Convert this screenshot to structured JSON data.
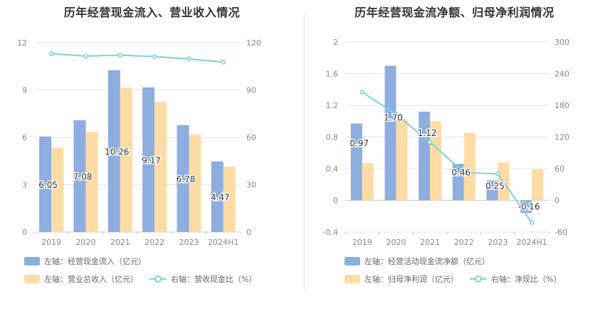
{
  "colors": {
    "bar1": "#8eaee0",
    "bar2": "#ffdca5",
    "line": "#7fd1d8",
    "grid": "#e6e6e6",
    "axis": "#cccccc",
    "tick": "#888888",
    "label": "#333333"
  },
  "chart_data": [
    {
      "type": "bar",
      "title": "历年经营现金流入、营业收入情况",
      "categories": [
        "2019",
        "2020",
        "2021",
        "2022",
        "2023",
        "2024H1"
      ],
      "ylim": [
        0,
        12
      ],
      "yticks": [
        "0",
        "3",
        "6",
        "9",
        "12"
      ],
      "y2lim": [
        0,
        120
      ],
      "y2ticks": [
        "0",
        "30",
        "60",
        "90",
        "120"
      ],
      "series": [
        {
          "name": "左轴：经营现金流入（亿元）",
          "kind": "bar",
          "axis": "left",
          "values": [
            6.05,
            7.08,
            10.26,
            9.17,
            6.78,
            4.47
          ],
          "labels": [
            "6.05",
            "7.08",
            "10.26",
            "9.17",
            "6.78",
            "4.47"
          ]
        },
        {
          "name": "左轴：营业总收入（亿元）",
          "kind": "bar",
          "axis": "left",
          "values": [
            5.35,
            6.35,
            9.15,
            8.25,
            6.18,
            4.15
          ]
        },
        {
          "name": "右轴：营收现金比（%）",
          "kind": "line",
          "axis": "right",
          "values": [
            113.1,
            111.5,
            112.1,
            111.2,
            109.7,
            107.7
          ]
        }
      ]
    },
    {
      "type": "bar",
      "title": "历年经营现金流净额、归母净利润情况",
      "categories": [
        "2019",
        "2020",
        "2021",
        "2022",
        "2023",
        "2024H1"
      ],
      "ylim": [
        -0.4,
        2
      ],
      "yticks": [
        "-0.4",
        "0",
        "0.4",
        "0.8",
        "1.2",
        "1.6",
        "2"
      ],
      "y2lim": [
        -60,
        300
      ],
      "y2ticks": [
        "-60",
        "0",
        "60",
        "120",
        "180",
        "240",
        "300"
      ],
      "series": [
        {
          "name": "左轴：经营活动现金流净额（亿元）",
          "kind": "bar",
          "axis": "left",
          "values": [
            0.97,
            1.7,
            1.12,
            0.46,
            0.25,
            -0.16
          ],
          "labels": [
            "0.97",
            "1.70",
            "1.12",
            "0.46",
            "0.25",
            "-0.16"
          ]
        },
        {
          "name": "左轴：归母净利润（亿元）",
          "kind": "bar",
          "axis": "left",
          "values": [
            0.47,
            1.03,
            1.0,
            0.85,
            0.48,
            0.39
          ]
        },
        {
          "name": "右轴：净现比（%）",
          "kind": "line",
          "axis": "right",
          "values": [
            205,
            163,
            110,
            53,
            50,
            -42
          ]
        }
      ]
    }
  ]
}
